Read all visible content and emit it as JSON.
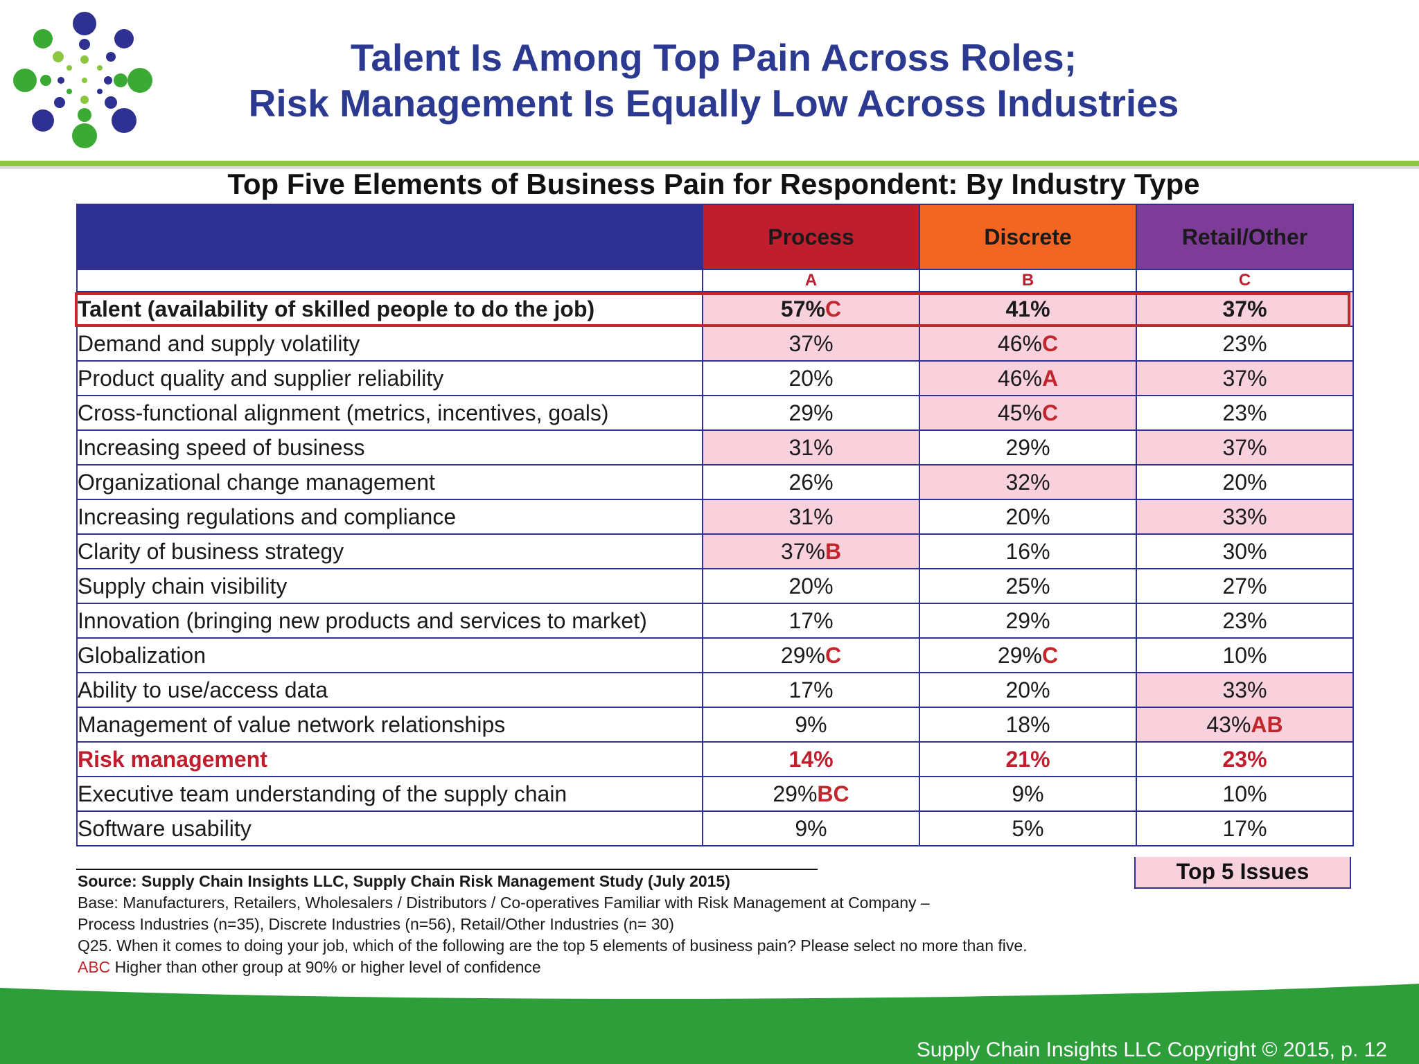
{
  "slide": {
    "title_line1": "Talent Is Among Top Pain Across Roles;",
    "title_line2": "Risk Management Is Equally Low Across Industries",
    "footer": "Supply Chain Insights LLC Copyright © 2015, p. 12"
  },
  "colors": {
    "title": "#2b3990",
    "table_border": "#2e3192",
    "process": "#be1e2d",
    "discrete": "#f26522",
    "retail_other": "#7d3c98",
    "top5_highlight": "#f9d1dc",
    "significance": "#c1272d",
    "footer_green": "#2e9e3a",
    "accent_green": "#8cc63f"
  },
  "chart_data": {
    "type": "table",
    "title": "Top Five Elements of Business Pain for Respondent: By Industry Type",
    "columns": [
      {
        "name": "Process",
        "letter": "A"
      },
      {
        "name": "Discrete",
        "letter": "B"
      },
      {
        "name": "Retail/Other",
        "letter": "C"
      }
    ],
    "rows": [
      {
        "label": "Talent (availability of skilled people to do the job)",
        "style": "bold",
        "values": [
          "57%",
          "41%",
          "37%"
        ],
        "sig": [
          "C",
          "",
          ""
        ],
        "top5": [
          true,
          true,
          true
        ]
      },
      {
        "label": "Demand and supply volatility",
        "style": "",
        "values": [
          "37%",
          "46%",
          "23%"
        ],
        "sig": [
          "",
          "C",
          ""
        ],
        "top5": [
          true,
          true,
          false
        ]
      },
      {
        "label": "Product quality and supplier reliability",
        "style": "",
        "values": [
          "20%",
          "46%",
          "37%"
        ],
        "sig": [
          "",
          "A",
          ""
        ],
        "top5": [
          false,
          true,
          true
        ]
      },
      {
        "label": "Cross-functional alignment (metrics, incentives, goals)",
        "style": "",
        "values": [
          "29%",
          "45%",
          "23%"
        ],
        "sig": [
          "",
          "C",
          ""
        ],
        "top5": [
          false,
          true,
          false
        ]
      },
      {
        "label": "Increasing speed of business",
        "style": "",
        "values": [
          "31%",
          "29%",
          "37%"
        ],
        "sig": [
          "",
          "",
          ""
        ],
        "top5": [
          true,
          false,
          true
        ]
      },
      {
        "label": "Organizational change management",
        "style": "",
        "values": [
          "26%",
          "32%",
          "20%"
        ],
        "sig": [
          "",
          "",
          ""
        ],
        "top5": [
          false,
          true,
          false
        ]
      },
      {
        "label": "Increasing regulations and compliance",
        "style": "",
        "values": [
          "31%",
          "20%",
          "33%"
        ],
        "sig": [
          "",
          "",
          ""
        ],
        "top5": [
          true,
          false,
          true
        ]
      },
      {
        "label": "Clarity of business strategy",
        "style": "",
        "values": [
          "37%",
          "16%",
          "30%"
        ],
        "sig": [
          "B",
          "",
          ""
        ],
        "top5": [
          true,
          false,
          false
        ]
      },
      {
        "label": "Supply chain visibility",
        "style": "",
        "values": [
          "20%",
          "25%",
          "27%"
        ],
        "sig": [
          "",
          "",
          ""
        ],
        "top5": [
          false,
          false,
          false
        ]
      },
      {
        "label": "Innovation (bringing new products and services to market)",
        "style": "",
        "values": [
          "17%",
          "29%",
          "23%"
        ],
        "sig": [
          "",
          "",
          ""
        ],
        "top5": [
          false,
          false,
          false
        ]
      },
      {
        "label": "Globalization",
        "style": "",
        "values": [
          "29%",
          "29%",
          "10%"
        ],
        "sig": [
          "C",
          "C",
          ""
        ],
        "top5": [
          false,
          false,
          false
        ]
      },
      {
        "label": "Ability to use/access data",
        "style": "",
        "values": [
          "17%",
          "20%",
          "33%"
        ],
        "sig": [
          "",
          "",
          ""
        ],
        "top5": [
          false,
          false,
          true
        ]
      },
      {
        "label": "Management of value network relationships",
        "style": "",
        "values": [
          "9%",
          "18%",
          "43%"
        ],
        "sig": [
          "",
          "",
          "AB"
        ],
        "top5": [
          false,
          false,
          true
        ]
      },
      {
        "label": "Risk management",
        "style": "risk",
        "values": [
          "14%",
          "21%",
          "23%"
        ],
        "sig": [
          "",
          "",
          ""
        ],
        "top5": [
          false,
          false,
          false
        ]
      },
      {
        "label": "Executive team understanding of the supply chain",
        "style": "",
        "values": [
          "29%",
          "9%",
          "10%"
        ],
        "sig": [
          "BC",
          "",
          ""
        ],
        "top5": [
          false,
          false,
          false
        ]
      },
      {
        "label": "Software usability",
        "style": "",
        "values": [
          "9%",
          "5%",
          "17%"
        ],
        "sig": [
          "",
          "",
          ""
        ],
        "top5": [
          false,
          false,
          false
        ]
      }
    ],
    "legend": "Top 5 Issues"
  },
  "notes": {
    "source": "Source:  Supply Chain Insights LLC, Supply Chain Risk Management Study (July 2015)",
    "base_line1": "Base:  Manufacturers, Retailers, Wholesalers / Distributors / Co-operatives Familiar with Risk Management at Company –",
    "base_line2": "Process Industries (n=35), Discrete Industries (n=56), Retail/Other Industries (n= 30)",
    "question": "Q25. When it comes to doing your job, which of the following are the top 5 elements of business pain? Please select no more than five.",
    "sig_letters": "ABC",
    "sig_text": " Higher than other group at 90% or higher level of confidence"
  }
}
